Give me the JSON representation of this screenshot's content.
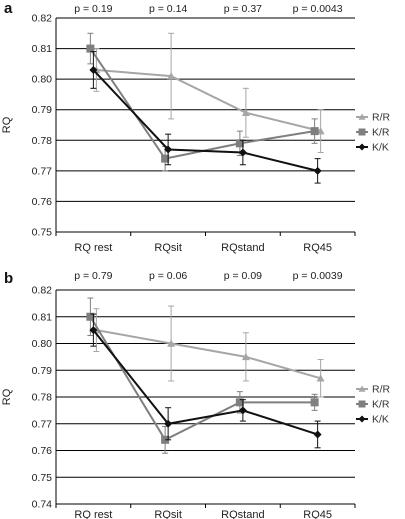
{
  "chart_data": [
    {
      "type": "line",
      "panel_label": "a",
      "ylabel": "RQ",
      "ylim": [
        0.75,
        0.82
      ],
      "yticks": [
        "0.75",
        "0.76",
        "0.77",
        "0.78",
        "0.79",
        "0.80",
        "0.81",
        "0.82"
      ],
      "categories": [
        "RQ rest",
        "RQsit",
        "RQstand",
        "RQ45"
      ],
      "p_values": [
        "p = 0.19",
        "p = 0.14",
        "p = 0.37",
        "p = 0.0043"
      ],
      "grid": true,
      "legend": "right",
      "series": [
        {
          "name": "R/R",
          "marker": "triangle",
          "color": "#a6a6a6",
          "values": [
            0.803,
            0.801,
            0.789,
            0.783
          ],
          "err": [
            0.007,
            0.014,
            0.008,
            0.007
          ]
        },
        {
          "name": "K/R",
          "marker": "square",
          "color": "#7f7f7f",
          "values": [
            0.81,
            0.774,
            0.779,
            0.783
          ],
          "err": [
            0.005,
            0.004,
            0.004,
            0.004
          ]
        },
        {
          "name": "K/K",
          "marker": "diamond",
          "color": "#111111",
          "values": [
            0.803,
            0.777,
            0.776,
            0.77
          ],
          "err": [
            0.006,
            0.005,
            0.004,
            0.004
          ]
        }
      ]
    },
    {
      "type": "line",
      "panel_label": "b",
      "ylabel": "RQ",
      "ylim": [
        0.74,
        0.82
      ],
      "yticks": [
        "0.74",
        "0.75",
        "0.76",
        "0.77",
        "0.78",
        "0.79",
        "0.80",
        "0.81",
        "0.82"
      ],
      "categories": [
        "RQ rest",
        "RQsit",
        "RQstand",
        "RQ45"
      ],
      "p_values": [
        "p = 0.79",
        "p = 0.06",
        "p = 0.09",
        "p = 0.0039"
      ],
      "grid": true,
      "legend": "right",
      "series": [
        {
          "name": "R/R",
          "marker": "triangle",
          "color": "#a6a6a6",
          "values": [
            0.805,
            0.8,
            0.795,
            0.787
          ],
          "err": [
            0.008,
            0.014,
            0.009,
            0.007
          ]
        },
        {
          "name": "K/R",
          "marker": "square",
          "color": "#7f7f7f",
          "values": [
            0.81,
            0.764,
            0.778,
            0.778
          ],
          "err": [
            0.007,
            0.005,
            0.004,
            0.003
          ]
        },
        {
          "name": "K/K",
          "marker": "diamond",
          "color": "#111111",
          "values": [
            0.805,
            0.77,
            0.775,
            0.766
          ],
          "err": [
            0.006,
            0.006,
            0.004,
            0.005
          ]
        }
      ]
    }
  ]
}
